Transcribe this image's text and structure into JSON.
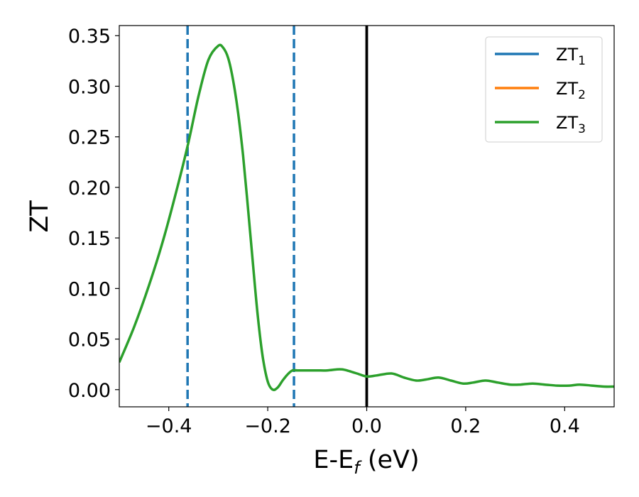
{
  "chart_data": {
    "type": "line",
    "xlabel": {
      "main": "E-E",
      "sub": "f",
      "suffix": " (eV)"
    },
    "ylabel": "ZT",
    "xlim": [
      -0.5,
      0.5
    ],
    "ylim": [
      -0.017,
      0.36
    ],
    "xticks": [
      -0.4,
      -0.2,
      0.0,
      0.2,
      0.4
    ],
    "xtick_labels": [
      "−0.4",
      "−0.2",
      "0.0",
      "0.2",
      "0.4"
    ],
    "yticks": [
      0.0,
      0.05,
      0.1,
      0.15,
      0.2,
      0.25,
      0.3,
      0.35
    ],
    "ytick_labels": [
      "0.00",
      "0.05",
      "0.10",
      "0.15",
      "0.20",
      "0.25",
      "0.30",
      "0.35"
    ],
    "grid": false,
    "legend_position": "top-right",
    "series": [
      {
        "name_main": "ZT",
        "name_sub": "1",
        "color": "#1f77b4",
        "visible_curve": false
      },
      {
        "name_main": "ZT",
        "name_sub": "2",
        "color": "#ff7f0e",
        "visible_curve": false
      },
      {
        "name_main": "ZT",
        "name_sub": "3",
        "color": "#2ca02c",
        "visible_curve": true,
        "x": [
          -0.5,
          -0.47,
          -0.44,
          -0.41,
          -0.38,
          -0.36,
          -0.34,
          -0.32,
          -0.3,
          -0.29,
          -0.28,
          -0.27,
          -0.26,
          -0.25,
          -0.24,
          -0.23,
          -0.22,
          -0.21,
          -0.2,
          -0.19,
          -0.18,
          -0.17,
          -0.16,
          -0.15,
          -0.14,
          -0.12,
          -0.1,
          -0.08,
          -0.06,
          -0.05,
          -0.04,
          -0.02,
          0.0,
          0.02,
          0.05,
          0.075,
          0.1,
          0.12,
          0.145,
          0.17,
          0.195,
          0.215,
          0.24,
          0.265,
          0.29,
          0.31,
          0.335,
          0.36,
          0.385,
          0.41,
          0.43,
          0.455,
          0.48,
          0.5
        ],
        "y": [
          0.027,
          0.062,
          0.103,
          0.15,
          0.205,
          0.245,
          0.29,
          0.326,
          0.34,
          0.338,
          0.328,
          0.306,
          0.274,
          0.232,
          0.18,
          0.125,
          0.072,
          0.032,
          0.008,
          0.0,
          0.002,
          0.009,
          0.015,
          0.019,
          0.019,
          0.019,
          0.019,
          0.019,
          0.02,
          0.02,
          0.019,
          0.016,
          0.013,
          0.014,
          0.016,
          0.012,
          0.009,
          0.01,
          0.012,
          0.009,
          0.006,
          0.007,
          0.009,
          0.007,
          0.005,
          0.005,
          0.006,
          0.005,
          0.004,
          0.004,
          0.005,
          0.004,
          0.003,
          0.003
        ]
      }
    ],
    "vlines": [
      {
        "x": -0.362,
        "style": "dashed",
        "color": "#1f77b4"
      },
      {
        "x": -0.147,
        "style": "dashed",
        "color": "#1f77b4"
      },
      {
        "x": 0.0,
        "style": "solid",
        "color": "#000000"
      }
    ]
  }
}
